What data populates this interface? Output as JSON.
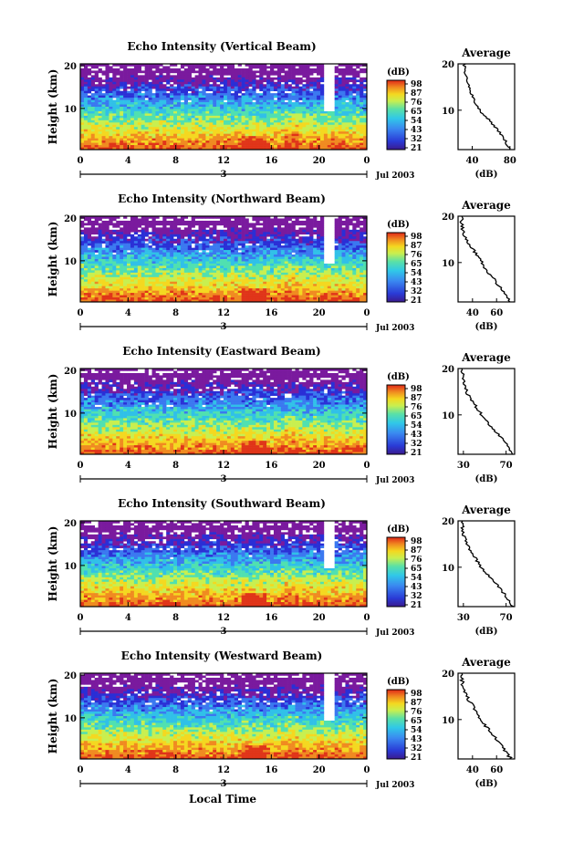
{
  "chart_data": [
    {
      "type": "heatmap",
      "title": "Echo Intensity (Vertical Beam)",
      "ylabel": "Height (km)",
      "x_ticks": [
        "0",
        "4",
        "8",
        "12",
        "16",
        "20",
        "0"
      ],
      "y_ticks": [
        "20",
        "10"
      ],
      "date_label": "Jul 2003",
      "date_marker": "3",
      "colorbar_label": "(dB)",
      "colorbar_ticks": [
        "98",
        "87",
        "76",
        "65",
        "54",
        "43",
        "32",
        "21"
      ],
      "average": {
        "title": "Average",
        "xlabel": "(dB)",
        "x_ticks": [
          "40",
          "80"
        ],
        "xlim": [
          25,
          85
        ],
        "y_ticks": [
          "20",
          "10"
        ],
        "ylim": [
          1.5,
          20
        ],
        "profile": [
          [
            80,
            1.5
          ],
          [
            76,
            3
          ],
          [
            70,
            5
          ],
          [
            62,
            7
          ],
          [
            52,
            9
          ],
          [
            45,
            11
          ],
          [
            40,
            13
          ],
          [
            36,
            15
          ],
          [
            34,
            17
          ],
          [
            32,
            19
          ]
        ]
      }
    },
    {
      "type": "heatmap",
      "title": "Echo Intensity (Northward Beam)",
      "ylabel": "Height (km)",
      "x_ticks": [
        "0",
        "4",
        "8",
        "12",
        "16",
        "20",
        "0"
      ],
      "y_ticks": [
        "20",
        "10"
      ],
      "date_label": "Jul 2003",
      "date_marker": "3",
      "colorbar_label": "(dB)",
      "colorbar_ticks": [
        "98",
        "87",
        "76",
        "65",
        "54",
        "43",
        "32",
        "21"
      ],
      "average": {
        "title": "Average",
        "xlabel": "(dB)",
        "x_ticks": [
          "40",
          "60"
        ],
        "xlim": [
          28,
          75
        ],
        "y_ticks": [
          "20",
          "10"
        ],
        "ylim": [
          1.5,
          20
        ],
        "profile": [
          [
            72,
            1.5
          ],
          [
            68,
            3
          ],
          [
            62,
            5
          ],
          [
            56,
            7
          ],
          [
            50,
            9
          ],
          [
            45,
            11
          ],
          [
            40,
            13
          ],
          [
            35,
            15
          ],
          [
            32,
            17
          ],
          [
            31,
            19
          ]
        ]
      }
    },
    {
      "type": "heatmap",
      "title": "Echo Intensity (Eastward Beam)",
      "ylabel": "Height (km)",
      "x_ticks": [
        "0",
        "4",
        "8",
        "12",
        "16",
        "20",
        "0"
      ],
      "y_ticks": [
        "20",
        "10"
      ],
      "date_label": "Jul 2003",
      "date_marker": "3",
      "colorbar_label": "(dB)",
      "colorbar_ticks": [
        "98",
        "87",
        "76",
        "65",
        "54",
        "43",
        "32",
        "21"
      ],
      "average": {
        "title": "Average",
        "xlabel": "(dB)",
        "x_ticks": [
          "30",
          "70"
        ],
        "xlim": [
          25,
          78
        ],
        "y_ticks": [
          "20",
          "10"
        ],
        "ylim": [
          1.5,
          20
        ],
        "profile": [
          [
            76,
            1.5
          ],
          [
            72,
            3
          ],
          [
            66,
            5
          ],
          [
            58,
            7
          ],
          [
            50,
            9
          ],
          [
            44,
            11
          ],
          [
            38,
            13
          ],
          [
            33,
            15
          ],
          [
            30,
            17
          ],
          [
            29,
            19
          ]
        ]
      }
    },
    {
      "type": "heatmap",
      "title": "Echo Intensity (Southward Beam)",
      "ylabel": "Height (km)",
      "x_ticks": [
        "0",
        "4",
        "8",
        "12",
        "16",
        "20",
        "0"
      ],
      "y_ticks": [
        "20",
        "10"
      ],
      "date_label": "Jul 2003",
      "date_marker": "3",
      "colorbar_label": "(dB)",
      "colorbar_ticks": [
        "98",
        "87",
        "76",
        "65",
        "54",
        "43",
        "32",
        "21"
      ],
      "average": {
        "title": "Average",
        "xlabel": "(dB)",
        "x_ticks": [
          "30",
          "70"
        ],
        "xlim": [
          25,
          78
        ],
        "y_ticks": [
          "20",
          "10"
        ],
        "ylim": [
          1.5,
          20
        ],
        "profile": [
          [
            76,
            1.5
          ],
          [
            72,
            3
          ],
          [
            66,
            5
          ],
          [
            58,
            7
          ],
          [
            50,
            9
          ],
          [
            44,
            11
          ],
          [
            38,
            13
          ],
          [
            33,
            15
          ],
          [
            30,
            17
          ],
          [
            29,
            19
          ]
        ]
      }
    },
    {
      "type": "heatmap",
      "title": "Echo Intensity (Westward Beam)",
      "ylabel": "Height (km)",
      "x_ticks": [
        "0",
        "4",
        "8",
        "12",
        "16",
        "20",
        "0"
      ],
      "y_ticks": [
        "20",
        "10"
      ],
      "date_label": "Jul 2003",
      "date_marker": "3",
      "colorbar_label": "(dB)",
      "colorbar_ticks": [
        "98",
        "87",
        "76",
        "65",
        "54",
        "43",
        "32",
        "21"
      ],
      "average": {
        "title": "Average",
        "xlabel": "(dB)",
        "x_ticks": [
          "40",
          "60"
        ],
        "xlim": [
          28,
          75
        ],
        "y_ticks": [
          "20",
          "10"
        ],
        "ylim": [
          1.5,
          20
        ],
        "profile": [
          [
            72,
            1.5
          ],
          [
            68,
            3
          ],
          [
            62,
            5
          ],
          [
            56,
            7
          ],
          [
            50,
            9
          ],
          [
            45,
            11
          ],
          [
            40,
            13
          ],
          [
            35,
            15
          ],
          [
            32,
            17
          ],
          [
            31,
            19
          ]
        ]
      }
    }
  ],
  "xlabel": "Local Time",
  "colors": {
    "scale": [
      "#7a1a9e",
      "#2a2fd6",
      "#3a78f0",
      "#30c0e8",
      "#50e0b0",
      "#c8ef50",
      "#f4d820",
      "#f08a20",
      "#e03418"
    ]
  }
}
